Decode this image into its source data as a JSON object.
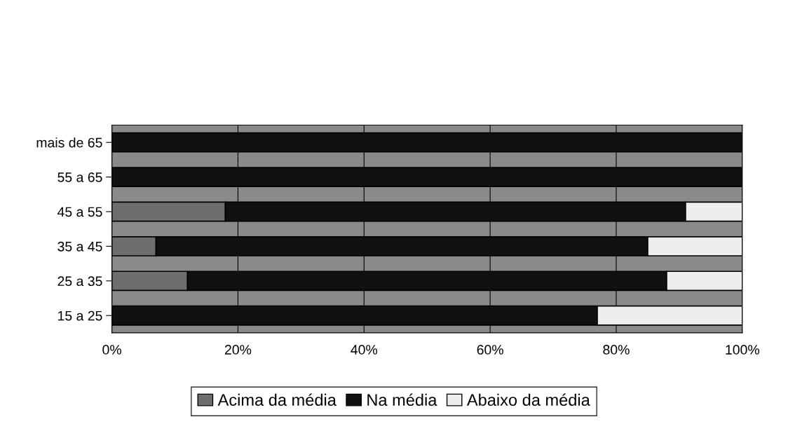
{
  "chart_data": {
    "type": "bar",
    "orientation": "horizontal",
    "stacked": true,
    "categories": [
      "mais de 65",
      "55 a 65",
      "45 a 55",
      "35 a 45",
      "25 a 35",
      "15 a 25"
    ],
    "series": [
      {
        "name": "Acima da média",
        "color": "#6e6e6e",
        "values": [
          0,
          0,
          18,
          7,
          12,
          0
        ]
      },
      {
        "name": "Na média",
        "color": "#111111",
        "values": [
          100,
          100,
          73,
          78,
          76,
          77
        ]
      },
      {
        "name": "Abaixo da média",
        "color": "#eeeeee",
        "values": [
          0,
          0,
          9,
          15,
          12,
          23
        ]
      }
    ],
    "xlim": [
      0,
      100
    ],
    "xticks": [
      {
        "value": 0,
        "label": "0%"
      },
      {
        "value": 20,
        "label": "20%"
      },
      {
        "value": 40,
        "label": "40%"
      },
      {
        "value": 60,
        "label": "60%"
      },
      {
        "value": 80,
        "label": "80%"
      },
      {
        "value": 100,
        "label": "100%"
      }
    ],
    "grid": "x",
    "legend": "bottom"
  }
}
